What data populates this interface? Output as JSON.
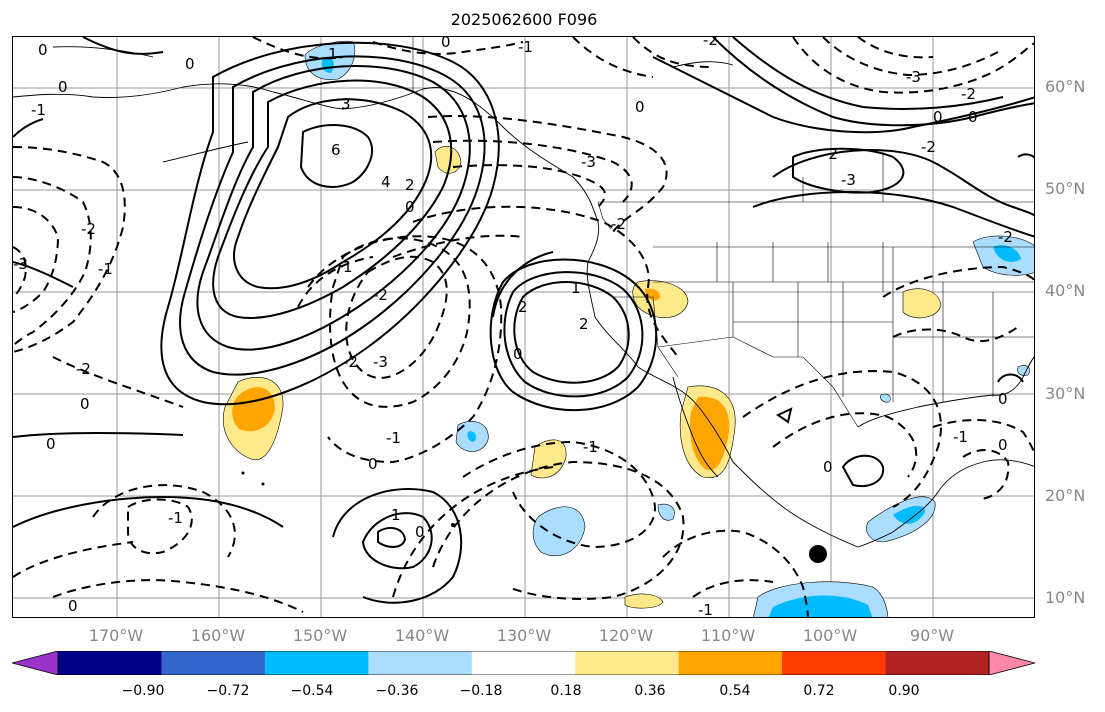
{
  "title": "2025062600 F096",
  "lat_labels": [
    "60°N",
    "50°N",
    "40°N",
    "30°N",
    "20°N",
    "10°N"
  ],
  "lon_labels": [
    "170°W",
    "160°W",
    "150°W",
    "140°W",
    "130°W",
    "120°W",
    "110°W",
    "100°W",
    "90°W"
  ],
  "colorbar": {
    "ticks": [
      "−0.90",
      "−0.72",
      "−0.54",
      "−0.36",
      "−0.18",
      "0.18",
      "0.36",
      "0.54",
      "0.72",
      "0.90"
    ],
    "colors": [
      "#9933cc",
      "#000088",
      "#3366cc",
      "#00bbff",
      "#aaddff",
      "#ffffff",
      "#ffe98a",
      "#ffa500",
      "#ff3c00",
      "#b22222",
      "#ff88aa"
    ]
  },
  "contour_labels": {
    "zero": "0",
    "neg1": "-1",
    "neg2": "-2",
    "neg3": "-3",
    "pos1": "1",
    "pos2": "2",
    "pos3": "3",
    "pos4": "4",
    "pos6": "6"
  }
}
